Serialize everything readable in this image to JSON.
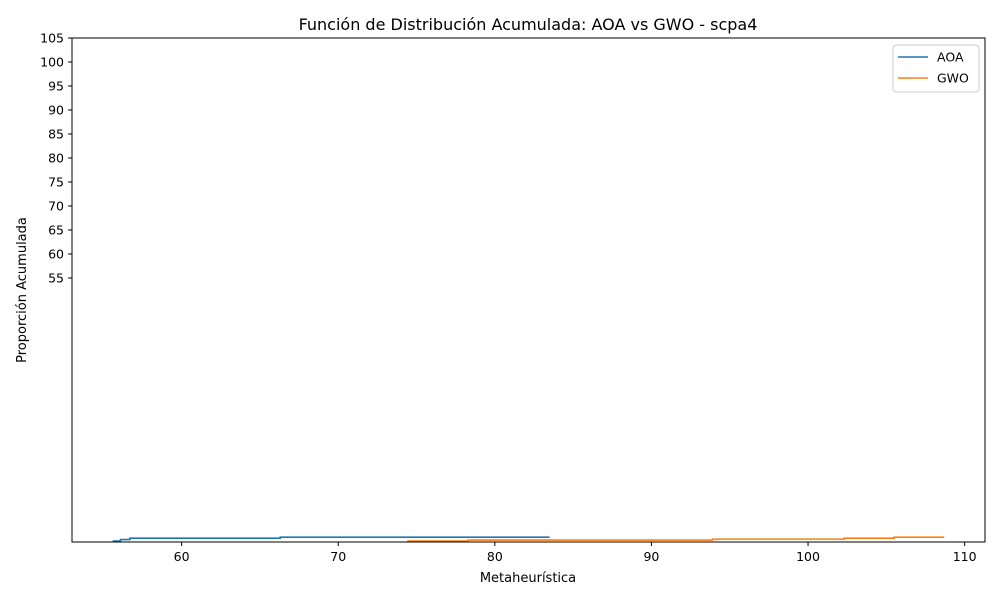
{
  "chart_data": {
    "type": "line",
    "step": "post",
    "title": "Función de Distribución Acumulada: AOA vs GWO - scpa4",
    "xlabel": "Metaheurística",
    "ylabel": "Proporción Acumulada",
    "xlim": [
      53,
      111.3
    ],
    "ylim": [
      0,
      105
    ],
    "xticks": [
      "60",
      "70",
      "80",
      "90",
      "100",
      "110"
    ],
    "yticks": [
      "55",
      "60",
      "65",
      "70",
      "75",
      "80",
      "85",
      "90",
      "95",
      "100",
      "105"
    ],
    "grid": false,
    "legend_position": "top-right",
    "series": [
      {
        "name": "AOA",
        "color": "#1f77b4",
        "x": [
          55.6,
          56.1,
          56.7,
          66.3,
          83.5
        ],
        "y": [
          0.2,
          0.5,
          0.8,
          1.0,
          1.0
        ]
      },
      {
        "name": "GWO",
        "color": "#ff7f0e",
        "x": [
          74.4,
          78.3,
          93.9,
          102.3,
          105.5,
          108.7
        ],
        "y": [
          0.2,
          0.4,
          0.6,
          0.8,
          1.0,
          1.0
        ]
      }
    ]
  }
}
